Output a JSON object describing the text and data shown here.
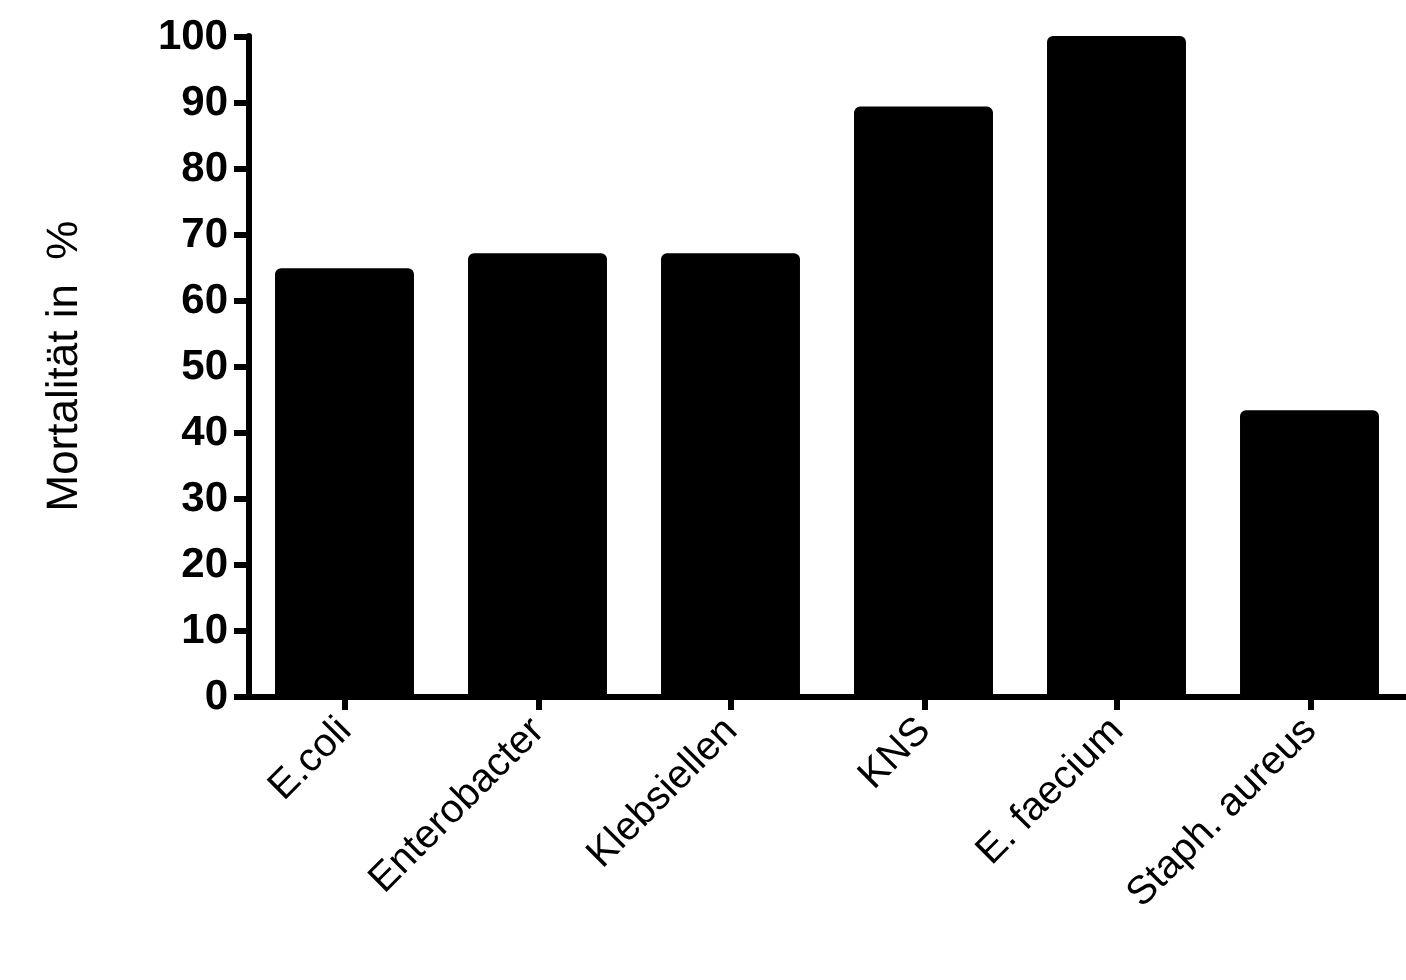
{
  "chart_data": {
    "type": "bar",
    "ylabel": "Mortalität in  %",
    "categories": [
      "E.coli",
      "Enterobacter",
      "Klebsiellen",
      "KNS",
      "E. faecium",
      "Staph. aureus"
    ],
    "values": [
      64.8,
      67.1,
      67.1,
      89.3,
      100,
      43.3
    ],
    "color": "#000000",
    "ylim": [
      0,
      100
    ],
    "yticks": [
      0,
      10,
      20,
      30,
      40,
      50,
      60,
      70,
      80,
      90,
      100
    ],
    "grid": false
  }
}
